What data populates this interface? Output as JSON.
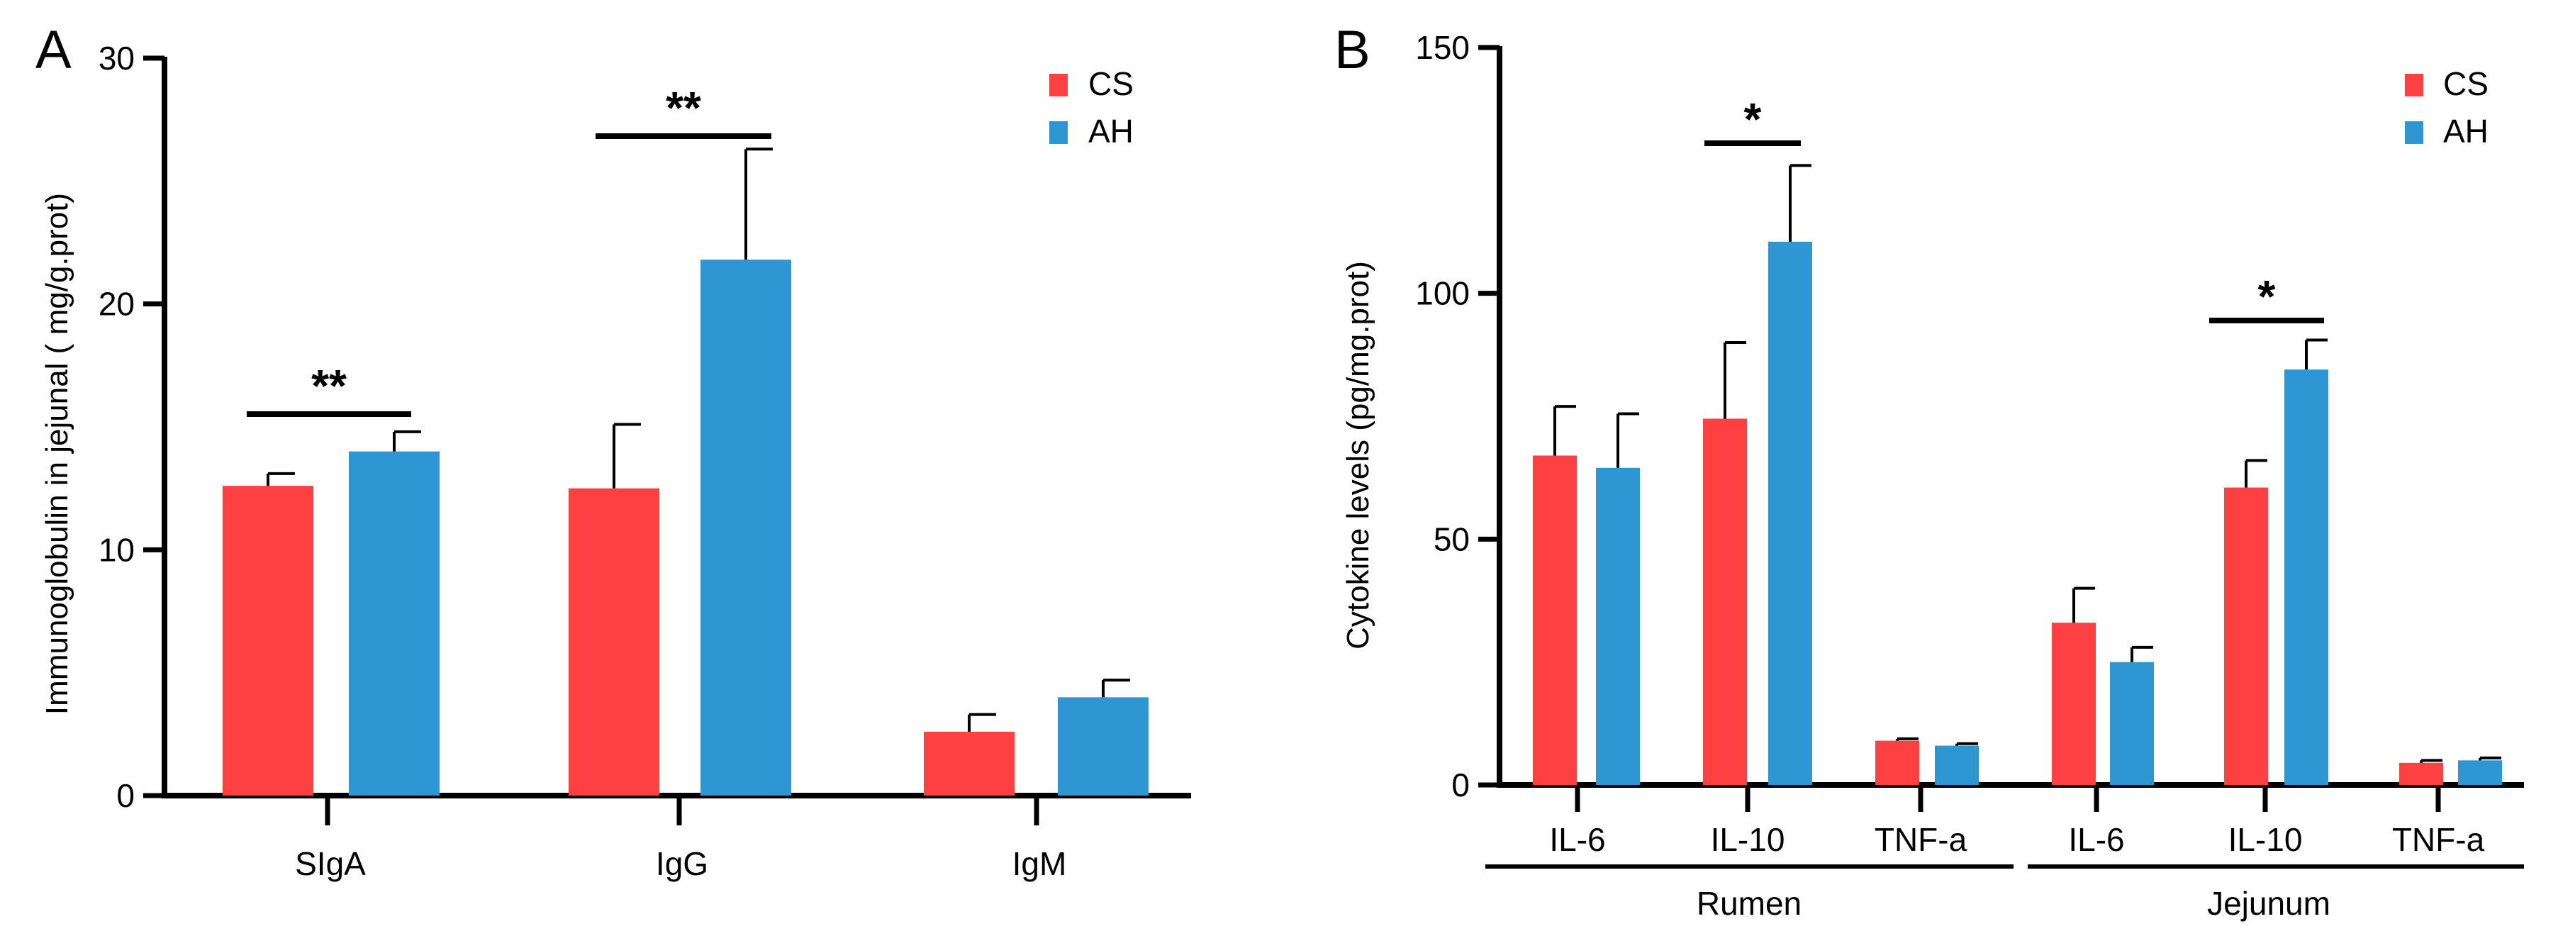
{
  "colors": {
    "cs": "#FF4040",
    "ah": "#2E96D2",
    "axis": "#000000"
  },
  "chart_data": [
    {
      "panel_label": "A",
      "type": "bar",
      "title": "",
      "ylabel": "Immunoglobulin  in jejunal ( mg/g.prot)",
      "xlabel": "",
      "ylim": [
        0,
        30
      ],
      "y_ticks": [
        0,
        10,
        20,
        30
      ],
      "categories": [
        "SIgA",
        "IgG",
        "IgM"
      ],
      "series": [
        {
          "name": "CS",
          "values": [
            12.6,
            12.5,
            2.6
          ],
          "errors": [
            0.5,
            2.6,
            0.7
          ]
        },
        {
          "name": "AH",
          "values": [
            14.0,
            21.8,
            4.0
          ],
          "errors": [
            0.8,
            4.5,
            0.7
          ]
        }
      ],
      "legend": [
        "CS",
        "AH"
      ],
      "legend_position": "top-right",
      "significance": [
        {
          "category": "SIgA",
          "label": "**"
        },
        {
          "category": "IgG",
          "label": "**"
        }
      ]
    },
    {
      "panel_label": "B",
      "type": "bar",
      "title": "",
      "ylabel": "Cytokine levels (pg/mg.prot)",
      "xlabel": "",
      "ylim": [
        0,
        150
      ],
      "y_ticks": [
        0,
        50,
        100,
        150
      ],
      "categories": [
        "IL-6",
        "IL-10",
        "TNF-a",
        "IL-6",
        "IL-10",
        "TNF-a"
      ],
      "groups": [
        {
          "label": "Rumen",
          "span": [
            0,
            2
          ]
        },
        {
          "label": "Jejunum",
          "span": [
            3,
            5
          ]
        }
      ],
      "series": [
        {
          "name": "CS",
          "values": [
            67,
            74.5,
            9,
            33,
            60.5,
            4.5
          ],
          "errors": [
            10,
            15.5,
            0.4,
            7,
            5.5,
            0.5
          ]
        },
        {
          "name": "AH",
          "values": [
            64.5,
            110.5,
            8,
            25,
            84.5,
            5
          ],
          "errors": [
            11,
            15.5,
            0.4,
            3,
            6,
            0.5
          ]
        }
      ],
      "legend": [
        "CS",
        "AH"
      ],
      "legend_position": "top-right",
      "significance": [
        {
          "category_index": 1,
          "label": "*"
        },
        {
          "category_index": 4,
          "label": "*"
        }
      ]
    }
  ]
}
